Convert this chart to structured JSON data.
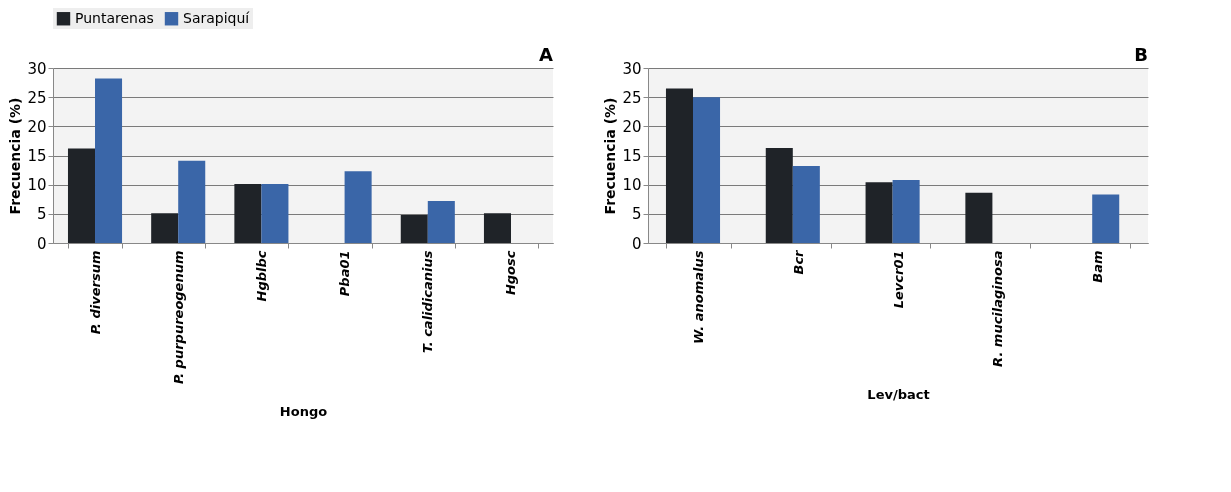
{
  "chart_data": [
    {
      "type": "bar",
      "title": "A",
      "xlabel": "Hongo",
      "ylabel": "Frecuencia (%)",
      "categories": [
        "P. diversum",
        "P. purpureogenum",
        "Hgblbc",
        "Pba01",
        "T. calidicanius",
        "Hgosc"
      ],
      "series": [
        {
          "name": "Puntarenas",
          "color": "#1f2328",
          "values": [
            16.2,
            5.1,
            10.1,
            0,
            4.8,
            5.1
          ]
        },
        {
          "name": "Sarapiquí",
          "color": "#3a66a8",
          "values": [
            28.2,
            14.1,
            10.1,
            12.3,
            7.2,
            0
          ]
        }
      ],
      "ylim": [
        0,
        30
      ],
      "yticks": [
        0,
        5,
        10,
        15,
        20,
        25,
        30
      ],
      "grid": "y",
      "legend": "top"
    },
    {
      "type": "bar",
      "title": "B",
      "xlabel": "Lev/bact",
      "ylabel": "Frecuencia (%)",
      "categories": [
        "W. anomalus",
        "Bcr",
        "Levcr01",
        "R. mucilaginosa",
        "Bam"
      ],
      "series": [
        {
          "name": "Puntarenas",
          "color": "#1f2328",
          "values": [
            26.5,
            16.3,
            10.4,
            8.6,
            0
          ]
        },
        {
          "name": "Sarapiquí",
          "color": "#3a66a8",
          "values": [
            25,
            13.2,
            10.8,
            0,
            8.3
          ]
        }
      ],
      "ylim": [
        0,
        30
      ],
      "yticks": [
        0,
        5,
        10,
        15,
        20,
        25,
        30
      ],
      "grid": "y",
      "legend": "top"
    }
  ]
}
